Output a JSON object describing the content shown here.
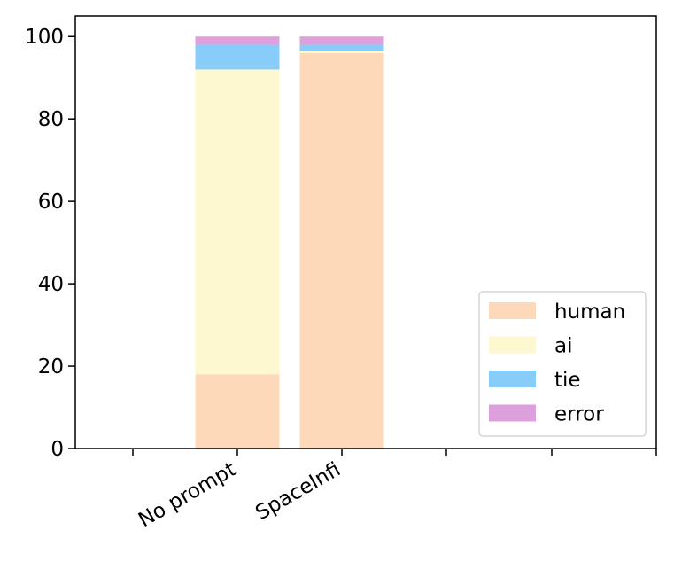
{
  "chart_data": {
    "type": "bar",
    "stacked": true,
    "categories": [
      "No prompt",
      "SpaceInfi"
    ],
    "series": [
      {
        "name": "human",
        "values": [
          18,
          96
        ],
        "color": "#fdd9b9"
      },
      {
        "name": "ai",
        "values": [
          74,
          0.6
        ],
        "color": "#fdf8cf"
      },
      {
        "name": "tie",
        "values": [
          6,
          1.4
        ],
        "color": "#88cdf9"
      },
      {
        "name": "error",
        "values": [
          2,
          2
        ],
        "color": "#dda0dd"
      }
    ],
    "title": "",
    "xlabel": "",
    "ylabel": "",
    "ylim": [
      0,
      105
    ],
    "yticks": [
      0,
      20,
      40,
      60,
      80,
      100
    ],
    "xtick_labels": [
      "No prompt",
      "SpaceInfi"
    ],
    "extra_x_ticks": 4,
    "legend_position": "lower-right",
    "grid": false
  }
}
